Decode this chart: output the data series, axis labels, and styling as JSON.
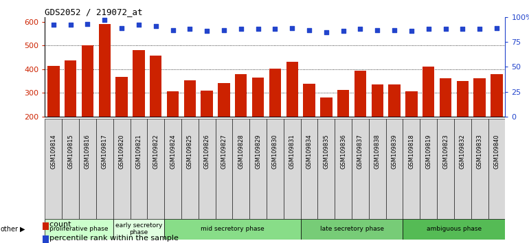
{
  "title": "GDS2052 / 219072_at",
  "samples": [
    "GSM109814",
    "GSM109815",
    "GSM109816",
    "GSM109817",
    "GSM109820",
    "GSM109821",
    "GSM109822",
    "GSM109824",
    "GSM109825",
    "GSM109826",
    "GSM109827",
    "GSM109828",
    "GSM109829",
    "GSM109830",
    "GSM109831",
    "GSM109834",
    "GSM109835",
    "GSM109836",
    "GSM109837",
    "GSM109838",
    "GSM109839",
    "GSM109818",
    "GSM109819",
    "GSM109823",
    "GSM109832",
    "GSM109833",
    "GSM109840"
  ],
  "counts": [
    415,
    438,
    502,
    591,
    369,
    481,
    458,
    306,
    353,
    311,
    343,
    380,
    365,
    401,
    430,
    338,
    281,
    313,
    394,
    337,
    337,
    308,
    411,
    363,
    349,
    362,
    378
  ],
  "percentiles": [
    92,
    92,
    93,
    97,
    89,
    92,
    91,
    87,
    88,
    86,
    87,
    88,
    88,
    88,
    89,
    87,
    85,
    86,
    88,
    87,
    87,
    86,
    88,
    88,
    88,
    88,
    89
  ],
  "phases": [
    {
      "name": "proliferative phase",
      "start": 0,
      "end": 4,
      "color": "#ccffcc"
    },
    {
      "name": "early secretory\nphase",
      "start": 4,
      "end": 7,
      "color": "#e0ffe0"
    },
    {
      "name": "mid secretory phase",
      "start": 7,
      "end": 15,
      "color": "#88dd88"
    },
    {
      "name": "late secretory phase",
      "start": 15,
      "end": 21,
      "color": "#77cc77"
    },
    {
      "name": "ambiguous phase",
      "start": 21,
      "end": 27,
      "color": "#55bb55"
    }
  ],
  "bar_color": "#cc2200",
  "dot_color": "#2244cc",
  "ylim_left": [
    200,
    620
  ],
  "ylim_right": [
    0,
    100
  ],
  "yticks_left": [
    200,
    300,
    400,
    500,
    600
  ],
  "yticks_right": [
    0,
    25,
    50,
    75,
    100
  ],
  "plot_bg": "#ffffff",
  "tick_bg": "#d8d8d8"
}
